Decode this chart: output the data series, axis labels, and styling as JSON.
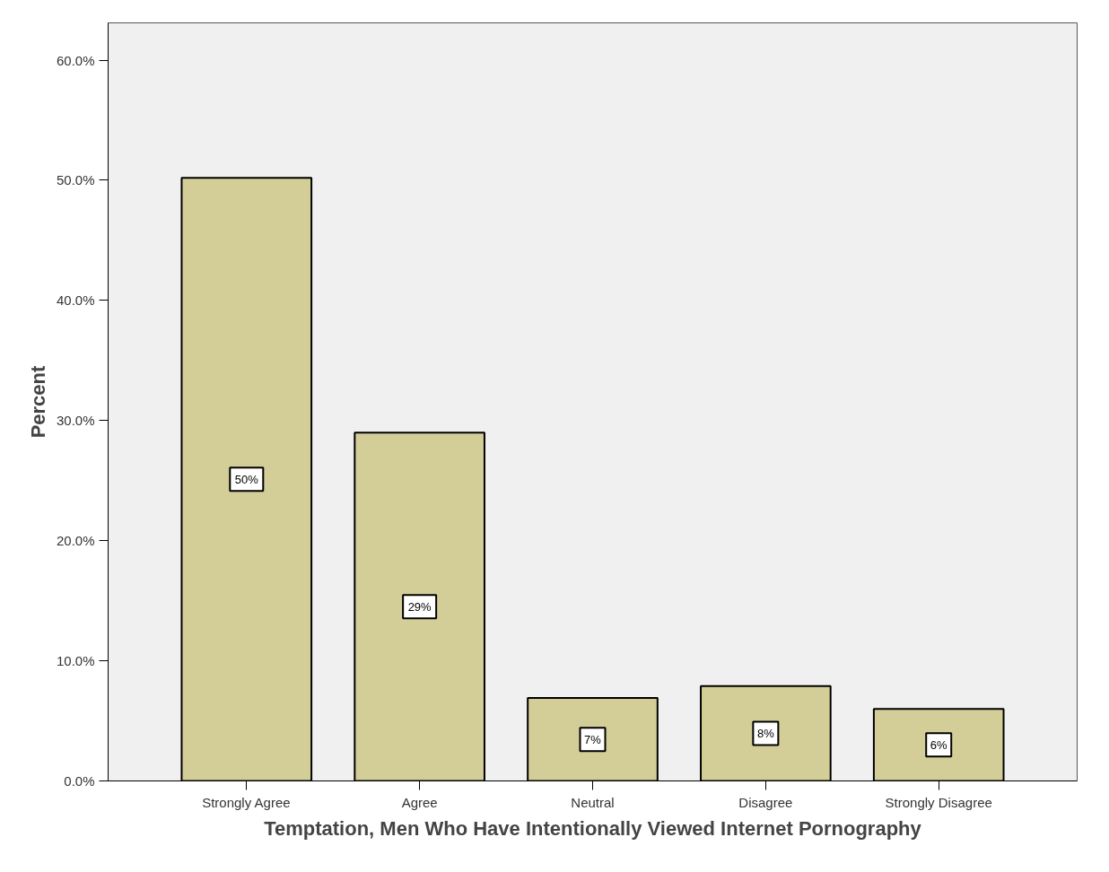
{
  "chart_data": {
    "type": "bar",
    "xlabel": "Temptation, Men Who Have Intentionally Viewed Internet Pornography",
    "ylabel": "Percent",
    "categories": [
      "Strongly Agree",
      "Agree",
      "Neutral",
      "Disagree",
      "Strongly Disagree"
    ],
    "values": [
      50.2,
      29.0,
      6.9,
      7.9,
      6.0
    ],
    "value_labels": [
      "50%",
      "29%",
      "7%",
      "8%",
      "6%"
    ],
    "color": "#d3ce97",
    "ylim": [
      0,
      63.1
    ],
    "yticks": [
      {
        "value": 0,
        "label": "0.0%"
      },
      {
        "value": 10,
        "label": "10.0%"
      },
      {
        "value": 20,
        "label": "20.0%"
      },
      {
        "value": 30,
        "label": "30.0%"
      },
      {
        "value": 40,
        "label": "40.0%"
      },
      {
        "value": 50,
        "label": "50.0%"
      },
      {
        "value": 60,
        "label": "60.0%"
      }
    ],
    "grid": false
  }
}
